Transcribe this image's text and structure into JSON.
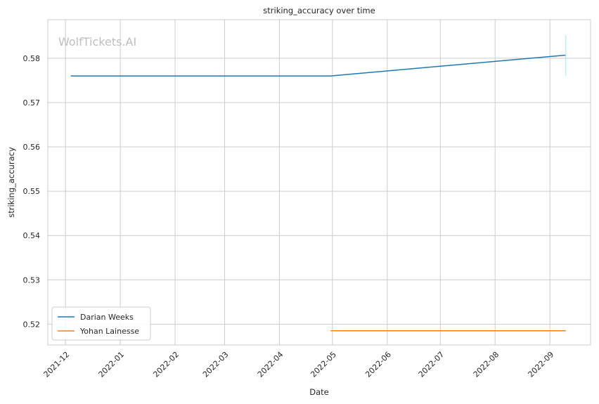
{
  "chart_data": {
    "type": "line",
    "title": "striking_accuracy over time",
    "xlabel": "Date",
    "ylabel": "striking_accuracy",
    "watermark": "WolfTickets.AI",
    "x_ticks": [
      "2021-12",
      "2022-01",
      "2022-02",
      "2022-03",
      "2022-04",
      "2022-05",
      "2022-06",
      "2022-07",
      "2022-08",
      "2022-09"
    ],
    "y_ticks": [
      "0.52",
      "0.53",
      "0.54",
      "0.55",
      "0.56",
      "0.57",
      "0.58"
    ],
    "xlim": [
      "2021-11-21",
      "2022-09-24"
    ],
    "ylim": [
      0.5153,
      0.5887
    ],
    "grid": true,
    "legend_position": "lower-left",
    "series": [
      {
        "name": "Darian Weeks",
        "color": "#1f77b4",
        "points": [
          {
            "x": "2021-12-04",
            "y": 0.576
          },
          {
            "x": "2022-04-30",
            "y": 0.576
          },
          {
            "x": "2022-09-10",
            "y": 0.5807
          }
        ]
      },
      {
        "name": "Yohan Lainesse",
        "color": "#ff7f0e",
        "points": [
          {
            "x": "2022-04-30",
            "y": 0.5185
          },
          {
            "x": "2022-09-10",
            "y": 0.5185
          }
        ]
      }
    ],
    "marker_line": {
      "color": "#aee3e8",
      "x": "2022-09-10",
      "y_range": [
        0.576,
        0.5852
      ]
    }
  }
}
